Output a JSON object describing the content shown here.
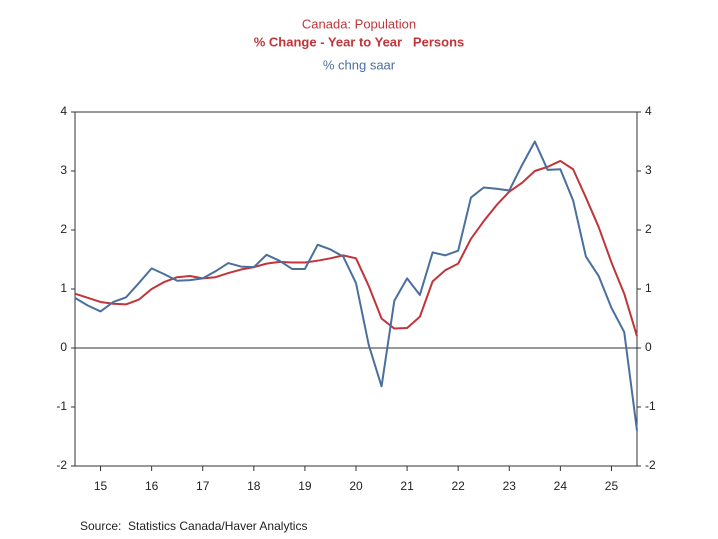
{
  "chart_data": {
    "type": "line",
    "title": "Canada: Population",
    "source": "Source:  Statistics Canada/Haver Analytics",
    "x": [
      15,
      15.25,
      15.5,
      15.75,
      16,
      16.25,
      16.5,
      16.75,
      17,
      17.25,
      17.5,
      17.75,
      18,
      18.25,
      18.5,
      18.75,
      19,
      19.25,
      19.5,
      19.75,
      20,
      20.25,
      20.5,
      20.75,
      21,
      21.25,
      21.5,
      21.75,
      22,
      22.25,
      22.5,
      22.75,
      23,
      23.25,
      23.5,
      23.75,
      24,
      24.25,
      24.5,
      24.75,
      25,
      25.25,
      25.5,
      25.75,
      26
    ],
    "xlim": [
      15,
      26
    ],
    "xticks": [
      {
        "value": 15.5,
        "label": "15"
      },
      {
        "value": 16.5,
        "label": "16"
      },
      {
        "value": 17.5,
        "label": "17"
      },
      {
        "value": 18.5,
        "label": "18"
      },
      {
        "value": 19.5,
        "label": "19"
      },
      {
        "value": 20.5,
        "label": "20"
      },
      {
        "value": 21.5,
        "label": "21"
      },
      {
        "value": 22.5,
        "label": "22"
      },
      {
        "value": 23.5,
        "label": "23"
      },
      {
        "value": 24.5,
        "label": "24"
      },
      {
        "value": 25.5,
        "label": "25"
      }
    ],
    "ylim": [
      -2,
      4
    ],
    "yticks": [
      -2,
      -1,
      0,
      1,
      2,
      3,
      4
    ],
    "series": [
      {
        "name": "% Change - Year to Year   Persons",
        "color": "#c0353a",
        "values": [
          0.92,
          0.85,
          0.78,
          0.75,
          0.74,
          0.82,
          1.0,
          1.12,
          1.2,
          1.22,
          1.18,
          1.2,
          1.27,
          1.33,
          1.37,
          1.43,
          1.46,
          1.45,
          1.45,
          1.48,
          1.52,
          1.57,
          1.52,
          1.05,
          0.5,
          0.33,
          0.34,
          0.53,
          1.13,
          1.32,
          1.43,
          1.85,
          2.15,
          2.42,
          2.65,
          2.8,
          3.0,
          3.07,
          3.17,
          3.03,
          2.55,
          2.05,
          1.45,
          0.92,
          0.2
        ]
      },
      {
        "name": "% chng saar",
        "color": "#4a6f9e",
        "values": [
          0.85,
          0.72,
          0.62,
          0.78,
          0.86,
          1.1,
          1.35,
          1.25,
          1.14,
          1.15,
          1.18,
          1.3,
          1.44,
          1.38,
          1.37,
          1.58,
          1.48,
          1.34,
          1.34,
          1.75,
          1.67,
          1.55,
          1.1,
          0.05,
          -0.65,
          0.8,
          1.18,
          0.9,
          1.62,
          1.57,
          1.65,
          2.55,
          2.72,
          2.7,
          2.67,
          3.1,
          3.5,
          3.02,
          3.03,
          2.5,
          1.55,
          1.22,
          0.68,
          0.27,
          -1.4
        ]
      }
    ]
  }
}
